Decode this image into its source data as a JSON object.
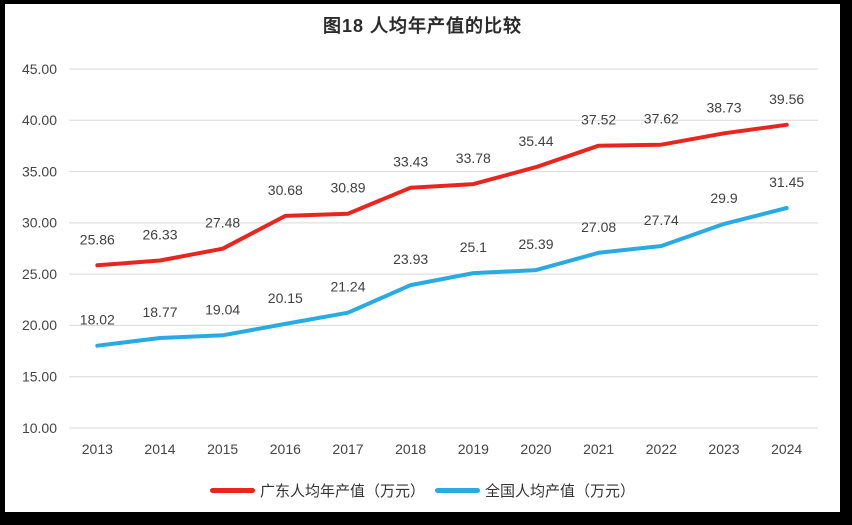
{
  "chart_data": {
    "type": "line",
    "title": "图18 人均年产值的比较",
    "categories": [
      "2013",
      "2014",
      "2015",
      "2016",
      "2017",
      "2018",
      "2019",
      "2020",
      "2021",
      "2022",
      "2023",
      "2024"
    ],
    "series": [
      {
        "name": "广东人均年产值（万元）",
        "color": "#e8251f",
        "values": [
          25.86,
          26.33,
          27.48,
          30.68,
          30.89,
          33.43,
          33.78,
          35.44,
          37.52,
          37.62,
          38.73,
          39.56
        ],
        "labels": [
          "25.86",
          "26.33",
          "27.48",
          "30.68",
          "30.89",
          "33.43",
          "33.78",
          "35.44",
          "37.52",
          "37.62",
          "38.73",
          "39.56"
        ]
      },
      {
        "name": "全国人均产值（万元）",
        "color": "#29abe2",
        "values": [
          18.02,
          18.77,
          19.04,
          20.15,
          21.24,
          23.93,
          25.1,
          25.39,
          27.08,
          27.74,
          29.9,
          31.45
        ],
        "labels": [
          "18.02",
          "18.77",
          "19.04",
          "20.15",
          "21.24",
          "23.93",
          "25.1",
          "25.39",
          "27.08",
          "27.74",
          "29.9",
          "31.45"
        ]
      }
    ],
    "ylim": [
      10,
      45
    ],
    "ytick_values": [
      45,
      40,
      35,
      30,
      25,
      20,
      15,
      10
    ],
    "ytick_labels": [
      "45.00",
      "40.00",
      "35.00",
      "30.00",
      "25.00",
      "20.00",
      "15.00",
      "10.00"
    ],
    "grid": "horizontal",
    "legend_position": "bottom"
  },
  "style": {
    "gridline_color": "#d9d9d9",
    "axis_text_color": "#444444",
    "data_label_color": "#404040",
    "frame_color": "#000000",
    "background": "#ffffff",
    "line_width": 4
  }
}
